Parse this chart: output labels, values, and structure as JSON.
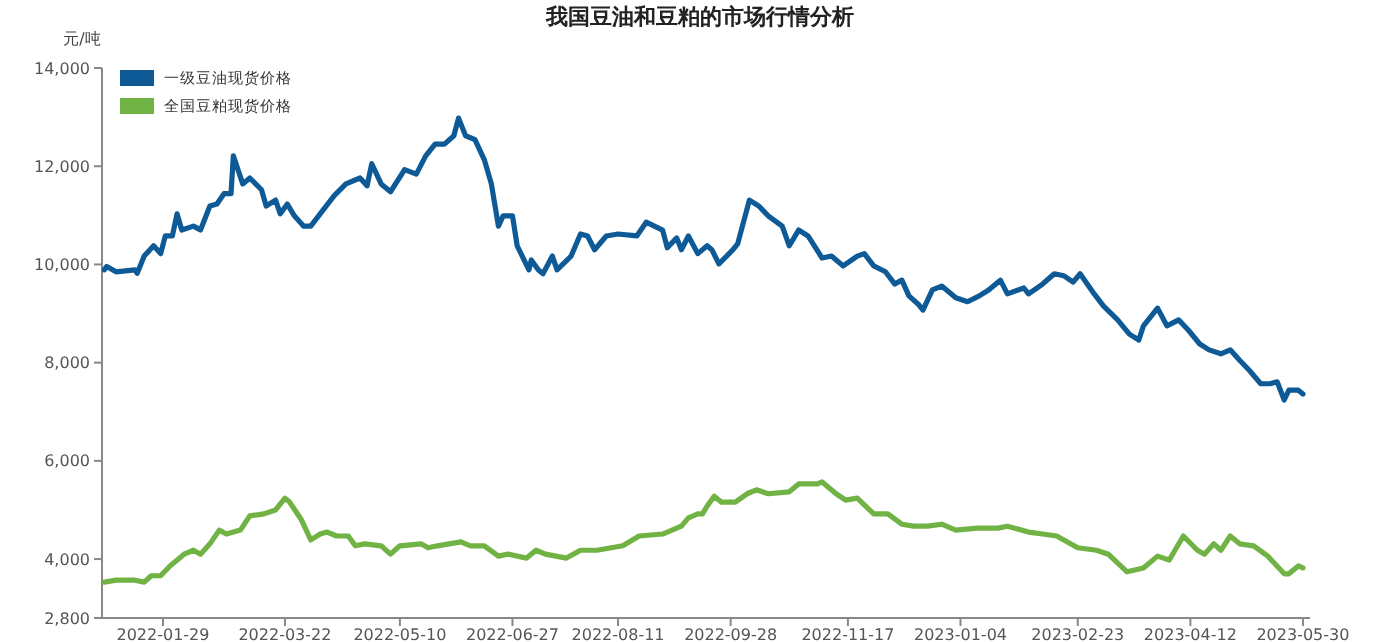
{
  "chart_data": {
    "type": "line",
    "title": "我国豆油和豆粕的市场行情分析",
    "ylabel": "元/吨",
    "legend": "top left",
    "grid": false,
    "marker": "none",
    "line_style": "solid",
    "xlim": [
      "2022-01-03",
      "2023-06-02"
    ],
    "xticks": [
      "2022-01-29",
      "2022-03-22",
      "2022-05-10",
      "2022-06-27",
      "2022-08-11",
      "2022-09-28",
      "2022-11-17",
      "2023-01-04",
      "2023-02-23",
      "2023-04-12",
      "2023-05-30"
    ],
    "ylim": [
      2800,
      14000
    ],
    "yticks": [
      {
        "value": 2800,
        "label": "2,800"
      },
      {
        "value": 4000,
        "label": "4,000"
      },
      {
        "value": 6000,
        "label": "6,000"
      },
      {
        "value": 8000,
        "label": "8,000"
      },
      {
        "value": 10000,
        "label": "10,000"
      },
      {
        "value": 12000,
        "label": "12,000"
      },
      {
        "value": 14000,
        "label": "14,000"
      }
    ],
    "series": [
      {
        "name": "一级豆油现货价格",
        "color": "#0e5a96",
        "x": [
          "2022-01-04",
          "2022-01-05",
          "2022-01-09",
          "2022-01-17",
          "2022-01-18",
          "2022-01-21",
          "2022-01-25",
          "2022-01-28",
          "2022-01-30",
          "2022-02-02",
          "2022-02-04",
          "2022-02-06",
          "2022-02-11",
          "2022-02-14",
          "2022-02-18",
          "2022-02-21",
          "2022-02-24",
          "2022-02-27",
          "2022-02-28",
          "2022-03-04",
          "2022-03-07",
          "2022-03-12",
          "2022-03-14",
          "2022-03-18",
          "2022-03-20",
          "2022-03-23",
          "2022-03-26",
          "2022-03-30",
          "2022-04-02",
          "2022-04-06",
          "2022-04-12",
          "2022-04-17",
          "2022-04-23",
          "2022-04-26",
          "2022-04-28",
          "2022-05-02",
          "2022-05-06",
          "2022-05-12",
          "2022-05-17",
          "2022-05-21",
          "2022-05-25",
          "2022-05-29",
          "2022-06-02",
          "2022-06-04",
          "2022-06-07",
          "2022-06-11",
          "2022-06-15",
          "2022-06-18",
          "2022-06-21",
          "2022-06-23",
          "2022-06-27",
          "2022-06-29",
          "2022-07-04",
          "2022-07-05",
          "2022-07-08",
          "2022-07-10",
          "2022-07-14",
          "2022-07-16",
          "2022-07-22",
          "2022-07-26",
          "2022-07-29",
          "2022-08-01",
          "2022-08-06",
          "2022-08-11",
          "2022-08-19",
          "2022-08-23",
          "2022-08-30",
          "2022-09-01",
          "2022-09-05",
          "2022-09-07",
          "2022-09-10",
          "2022-09-14",
          "2022-09-18",
          "2022-09-20",
          "2022-09-23",
          "2022-09-29",
          "2022-10-01",
          "2022-10-06",
          "2022-10-10",
          "2022-10-14",
          "2022-10-20",
          "2022-10-23",
          "2022-10-27",
          "2022-10-31",
          "2022-11-06",
          "2022-11-10",
          "2022-11-15",
          "2022-11-21",
          "2022-11-24",
          "2022-11-28",
          "2022-12-03",
          "2022-12-07",
          "2022-12-10",
          "2022-12-13",
          "2022-12-17",
          "2022-12-19",
          "2022-12-23",
          "2022-12-27",
          "2023-01-02",
          "2023-01-07",
          "2023-01-12",
          "2023-01-16",
          "2023-01-21",
          "2023-01-24",
          "2023-01-31",
          "2023-02-02",
          "2023-02-08",
          "2023-02-13",
          "2023-02-17",
          "2023-02-21",
          "2023-02-24",
          "2023-03-02",
          "2023-03-06",
          "2023-03-12",
          "2023-03-17",
          "2023-03-21",
          "2023-03-23",
          "2023-03-29",
          "2023-04-02",
          "2023-04-07",
          "2023-04-11",
          "2023-04-16",
          "2023-04-20",
          "2023-04-25",
          "2023-04-29",
          "2023-05-03",
          "2023-05-07",
          "2023-05-12",
          "2023-05-16",
          "2023-05-19",
          "2023-05-22",
          "2023-05-24",
          "2023-05-28",
          "2023-05-30"
        ],
        "values": [
          9890,
          9960,
          9850,
          9890,
          9820,
          10170,
          10380,
          10220,
          10580,
          10580,
          11030,
          10700,
          10780,
          10700,
          11190,
          11230,
          11440,
          11440,
          12210,
          11640,
          11760,
          11520,
          11190,
          11310,
          11030,
          11230,
          10990,
          10780,
          10780,
          11030,
          11400,
          11640,
          11760,
          11600,
          12050,
          11640,
          11480,
          11930,
          11840,
          12210,
          12450,
          12450,
          12620,
          12980,
          12620,
          12540,
          12130,
          11640,
          10780,
          10990,
          10990,
          10380,
          9890,
          10090,
          9890,
          9810,
          10170,
          9890,
          10170,
          10620,
          10580,
          10300,
          10580,
          10620,
          10580,
          10860,
          10700,
          10340,
          10540,
          10300,
          10580,
          10220,
          10380,
          10300,
          10010,
          10300,
          10420,
          11310,
          11190,
          10990,
          10780,
          10380,
          10700,
          10580,
          10130,
          10170,
          9970,
          10170,
          10220,
          9970,
          9850,
          9600,
          9680,
          9360,
          9190,
          9070,
          9480,
          9560,
          9320,
          9240,
          9360,
          9480,
          9680,
          9400,
          9520,
          9400,
          9600,
          9810,
          9770,
          9640,
          9810,
          9400,
          9150,
          8870,
          8580,
          8460,
          8750,
          9110,
          8750,
          8870,
          8670,
          8380,
          8260,
          8180,
          8260,
          8050,
          7850,
          7570,
          7570,
          7610,
          7240,
          7440,
          7440,
          7360
        ]
      },
      {
        "name": "全国豆粕现货价格",
        "color": "#70b244",
        "x": [
          "2022-01-04",
          "2022-01-09",
          "2022-01-17",
          "2022-01-21",
          "2022-01-24",
          "2022-01-28",
          "2022-02-01",
          "2022-02-07",
          "2022-02-11",
          "2022-02-14",
          "2022-02-18",
          "2022-02-22",
          "2022-02-25",
          "2022-03-03",
          "2022-03-07",
          "2022-03-13",
          "2022-03-18",
          "2022-03-22",
          "2022-03-24",
          "2022-03-29",
          "2022-04-02",
          "2022-04-06",
          "2022-04-09",
          "2022-04-13",
          "2022-04-18",
          "2022-04-21",
          "2022-04-25",
          "2022-05-02",
          "2022-05-06",
          "2022-05-10",
          "2022-05-19",
          "2022-05-22",
          "2022-05-26",
          "2022-06-05",
          "2022-06-09",
          "2022-06-15",
          "2022-06-21",
          "2022-06-25",
          "2022-07-03",
          "2022-07-07",
          "2022-07-11",
          "2022-07-20",
          "2022-07-26",
          "2022-08-02",
          "2022-08-13",
          "2022-08-20",
          "2022-08-30",
          "2022-09-07",
          "2022-09-10",
          "2022-09-14",
          "2022-09-16",
          "2022-09-18",
          "2022-09-21",
          "2022-09-24",
          "2022-09-30",
          "2022-10-05",
          "2022-10-09",
          "2022-10-14",
          "2022-10-23",
          "2022-10-27",
          "2022-11-04",
          "2022-11-06",
          "2022-11-12",
          "2022-11-16",
          "2022-11-21",
          "2022-11-28",
          "2022-12-04",
          "2022-12-10",
          "2022-12-15",
          "2022-12-21",
          "2022-12-27",
          "2023-01-02",
          "2023-01-11",
          "2023-01-20",
          "2023-01-24",
          "2023-02-02",
          "2023-02-08",
          "2023-02-14",
          "2023-02-23",
          "2023-03-03",
          "2023-03-08",
          "2023-03-16",
          "2023-03-23",
          "2023-03-29",
          "2023-04-03",
          "2023-04-09",
          "2023-04-15",
          "2023-04-18",
          "2023-04-22",
          "2023-04-25",
          "2023-04-29",
          "2023-05-03",
          "2023-05-09",
          "2023-05-15",
          "2023-05-22",
          "2023-05-24",
          "2023-05-28",
          "2023-05-30"
        ],
        "values": [
          3530,
          3570,
          3570,
          3530,
          3660,
          3660,
          3860,
          4100,
          4180,
          4100,
          4310,
          4590,
          4510,
          4590,
          4880,
          4920,
          5000,
          5240,
          5160,
          4800,
          4390,
          4510,
          4550,
          4470,
          4470,
          4270,
          4310,
          4270,
          4100,
          4270,
          4310,
          4230,
          4270,
          4350,
          4270,
          4270,
          4060,
          4100,
          4020,
          4180,
          4100,
          4020,
          4180,
          4180,
          4270,
          4470,
          4510,
          4670,
          4840,
          4920,
          4920,
          5080,
          5280,
          5160,
          5160,
          5330,
          5410,
          5330,
          5370,
          5530,
          5530,
          5570,
          5330,
          5200,
          5240,
          4920,
          4920,
          4710,
          4670,
          4670,
          4710,
          4590,
          4630,
          4630,
          4670,
          4550,
          4510,
          4470,
          4230,
          4180,
          4100,
          3740,
          3820,
          4060,
          3980,
          4470,
          4180,
          4100,
          4310,
          4180,
          4470,
          4310,
          4270,
          4060,
          3700,
          3700,
          3860,
          3820
        ]
      }
    ]
  }
}
